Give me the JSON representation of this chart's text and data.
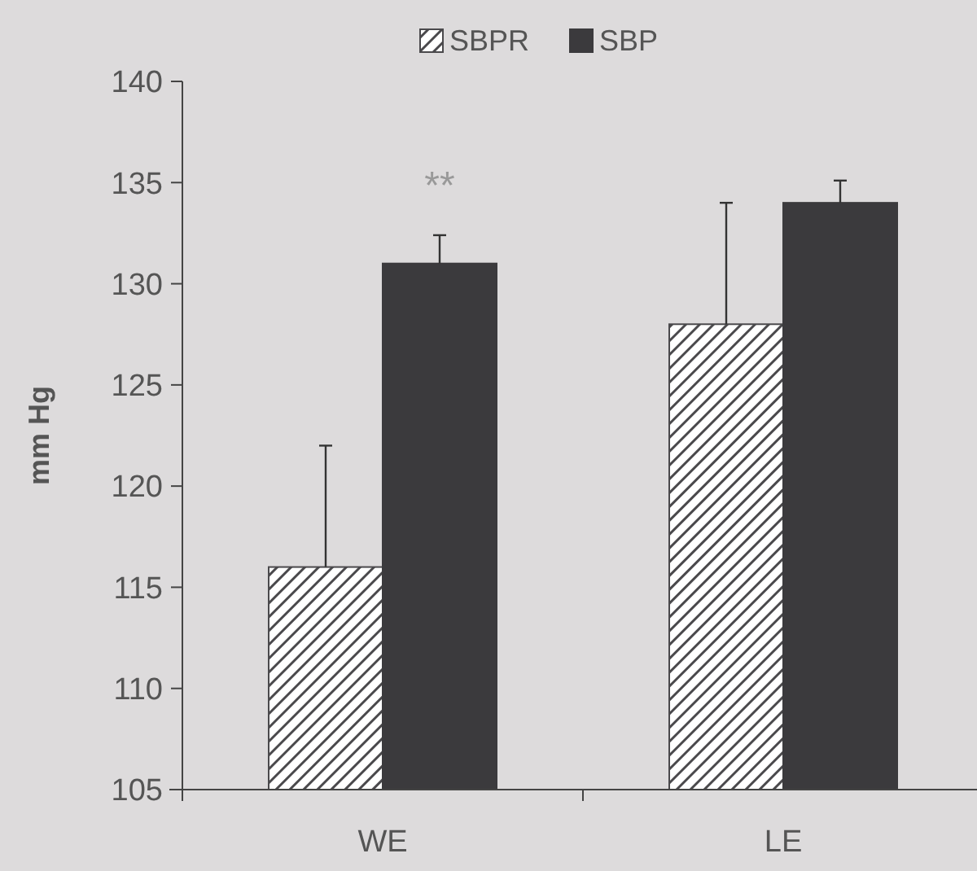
{
  "chart_data": {
    "type": "bar",
    "ylabel": "mm Hg",
    "categories": [
      "WE",
      "LE"
    ],
    "series": [
      {
        "name": "SBPR",
        "color": "#4a494c",
        "values": [
          116,
          128
        ],
        "errors": [
          [
            116,
            122
          ],
          [
            128,
            134
          ]
        ]
      },
      {
        "name": "SBP",
        "color": "#3b3a3d",
        "values": [
          131,
          134
        ],
        "errors": [
          [
            131,
            132.4
          ],
          [
            134,
            135.1
          ]
        ]
      }
    ],
    "ylim": [
      105,
      140
    ],
    "yticks": [
      105,
      110,
      115,
      120,
      125,
      130,
      135,
      140
    ],
    "grid": false,
    "legend": "top",
    "annotations": [
      "**"
    ]
  }
}
